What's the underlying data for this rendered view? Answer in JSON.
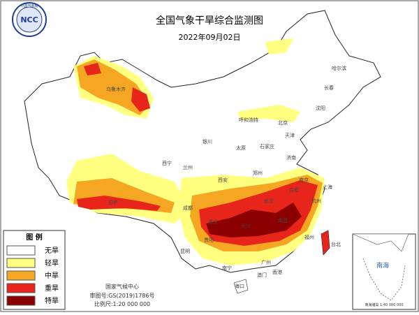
{
  "header": {
    "logo_text": "NCC",
    "logo_org": "中国气象局",
    "title": "全国气象干旱综合监测图",
    "date": "2022年09月02日"
  },
  "legend": {
    "title": "图 例",
    "items": [
      {
        "label": "无旱",
        "color": "#ffffff"
      },
      {
        "label": "轻旱",
        "color": "#ffff80"
      },
      {
        "label": "中旱",
        "color": "#f5a623"
      },
      {
        "label": "重旱",
        "color": "#e8251b"
      },
      {
        "label": "特旱",
        "color": "#8b0000"
      }
    ]
  },
  "footer": {
    "org": "国家气候中心",
    "approval": "审图号:GS(2019)1786号",
    "scale": "比例尺:1:20 000 000"
  },
  "inset": {
    "label": "南海",
    "scale": "南海诸岛 1:40 000 000"
  },
  "cities": [
    "北京",
    "天津",
    "石家庄",
    "太原",
    "济南",
    "郑州",
    "西安",
    "兰州",
    "西宁",
    "银川",
    "呼和浩特",
    "乌鲁木齐",
    "拉萨",
    "成都",
    "重庆",
    "贵阳",
    "昆明",
    "南宁",
    "广州",
    "长沙",
    "武汉",
    "南昌",
    "合肥",
    "南京",
    "上海",
    "杭州",
    "福州",
    "台北",
    "哈尔滨",
    "长春",
    "沈阳",
    "海口",
    "香港",
    "澳门"
  ]
}
